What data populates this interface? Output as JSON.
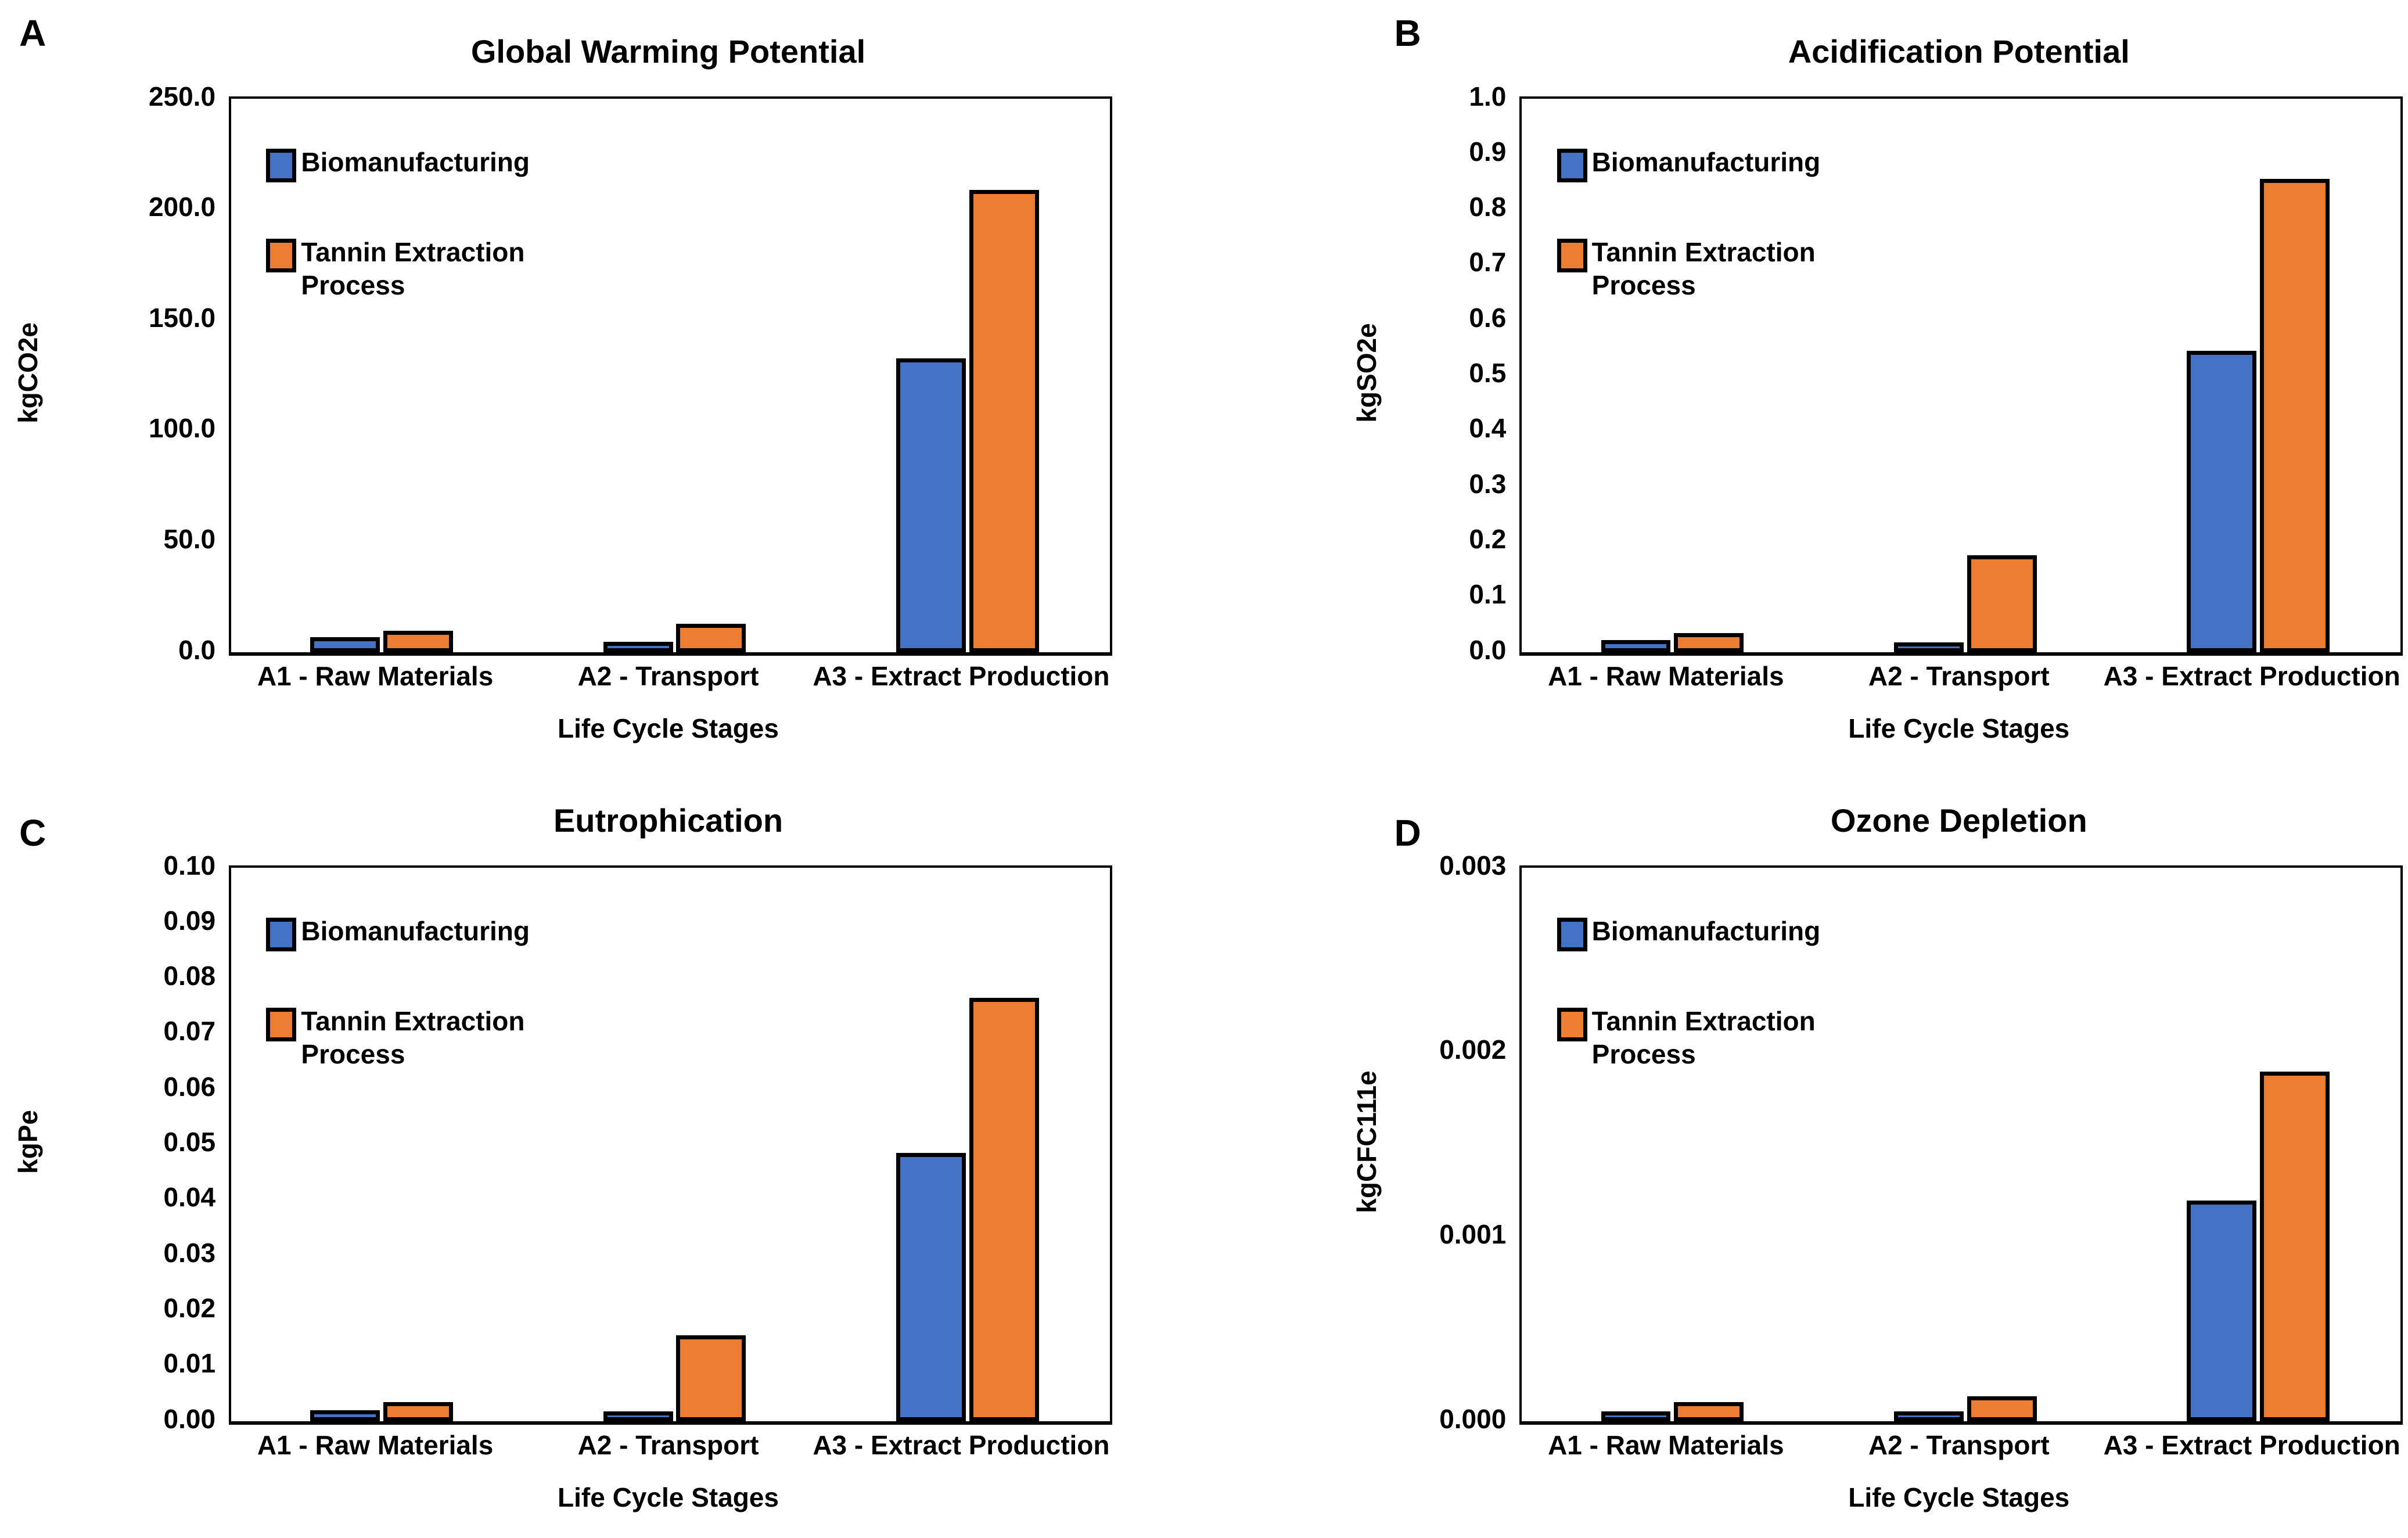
{
  "accent_colors": {
    "biomanufacturing_blue": "#4472C4",
    "tannin_orange": "#ED7D31",
    "bar_outline": "#000000"
  },
  "chart_data": [
    {
      "panel_label": "A",
      "type": "bar",
      "title": "Global Warming Potential",
      "ylabel": "kgCO2e",
      "xlabel": "Life Cycle Stages",
      "categories": [
        "A1 - Raw Materials",
        "A2 - Transport",
        "A3 - Extract Production"
      ],
      "ylim": [
        0,
        250
      ],
      "ytick_labels": [
        "250.0",
        "200.0",
        "150.0",
        "100.0",
        "50.0",
        "0.0"
      ],
      "grid": false,
      "legend_position": "inside-top-left",
      "series": [
        {
          "name": "Biomanufacturing",
          "color": "#4472C4",
          "values": [
            3,
            1,
            129
          ]
        },
        {
          "name": "Tannin Extraction Process",
          "color": "#ED7D31",
          "values": [
            6,
            9,
            205
          ]
        }
      ]
    },
    {
      "panel_label": "B",
      "type": "bar",
      "title": "Acidification Potential",
      "ylabel": "kgSO2e",
      "xlabel": "Life Cycle Stages",
      "categories": [
        "A1 - Raw Materials",
        "A2 - Transport",
        "A3 - Extract Production"
      ],
      "ylim": [
        0,
        1.0
      ],
      "ytick_labels": [
        "1.0",
        "0.9",
        "0.8",
        "0.7",
        "0.6",
        "0.5",
        "0.4",
        "0.3",
        "0.2",
        "0.1",
        "0.0"
      ],
      "grid": false,
      "legend_position": "inside-top-left",
      "series": [
        {
          "name": "Biomanufacturing",
          "color": "#4472C4",
          "values": [
            0.007,
            0.003,
            0.53
          ]
        },
        {
          "name": "Tannin Extraction Process",
          "color": "#ED7D31",
          "values": [
            0.02,
            0.16,
            0.84
          ]
        }
      ]
    },
    {
      "panel_label": "C",
      "type": "bar",
      "title": "Eutrophication",
      "ylabel": "kgPe",
      "xlabel": "Life Cycle Stages",
      "categories": [
        "A1 - Raw Materials",
        "A2 - Transport",
        "A3 - Extract Production"
      ],
      "ylim": [
        0,
        0.1
      ],
      "ytick_labels": [
        "0.10",
        "0.09",
        "0.08",
        "0.07",
        "0.06",
        "0.05",
        "0.04",
        "0.03",
        "0.02",
        "0.01",
        "0.00"
      ],
      "grid": false,
      "legend_position": "inside-top-left",
      "series": [
        {
          "name": "Biomanufacturing",
          "color": "#4472C4",
          "values": [
            0.0005,
            0.0003,
            0.047
          ]
        },
        {
          "name": "Tannin Extraction Process",
          "color": "#ED7D31",
          "values": [
            0.002,
            0.014,
            0.075
          ]
        }
      ]
    },
    {
      "panel_label": "D",
      "type": "bar",
      "title": "Ozone Depletion",
      "ylabel": "kgCFC111e",
      "xlabel": "Life Cycle Stages",
      "categories": [
        "A1 - Raw Materials",
        "A2 - Transport",
        "A3 - Extract Production"
      ],
      "ylim": [
        0,
        0.003
      ],
      "ytick_labels": [
        "0.003",
        "0.002",
        "0.001",
        "0.000"
      ],
      "grid": false,
      "legend_position": "inside-top-left",
      "series": [
        {
          "name": "Biomanufacturing",
          "color": "#4472C4",
          "values": [
            1e-05,
            1e-05,
            0.00115
          ]
        },
        {
          "name": "Tannin Extraction Process",
          "color": "#ED7D31",
          "values": [
            6e-05,
            9e-05,
            0.00185
          ]
        }
      ]
    }
  ]
}
